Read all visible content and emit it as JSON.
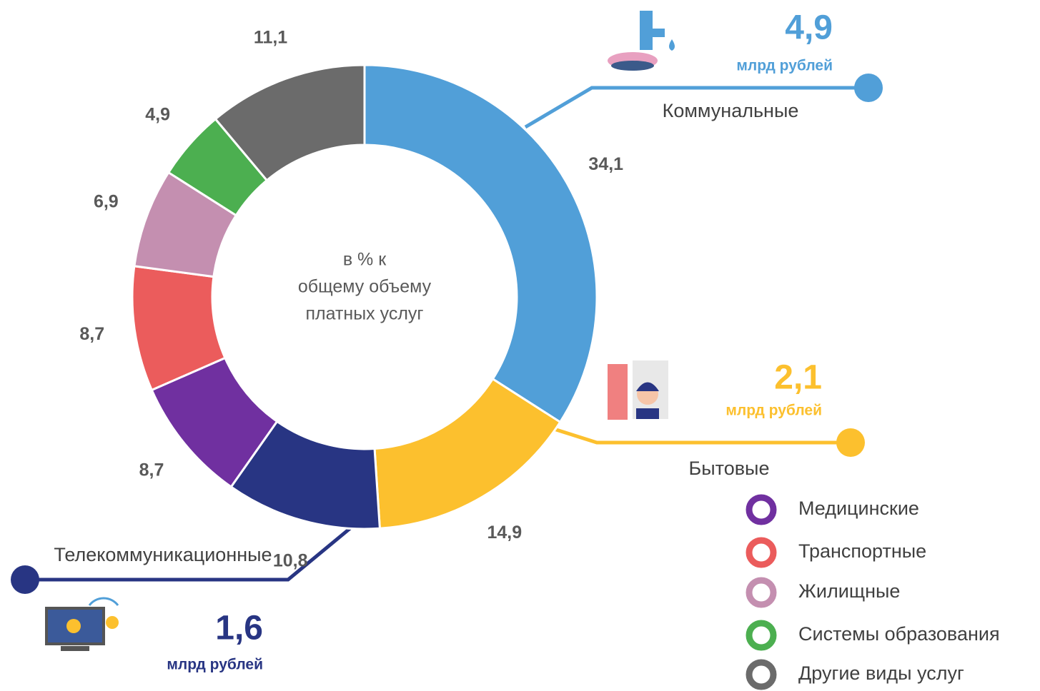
{
  "chart_data": {
    "type": "donut",
    "categories": [
      "Коммунальные",
      "Бытовые",
      "Телекоммуникационные",
      "Медицинские",
      "Транспортные",
      "Жилищные",
      "Системы образования",
      "Другие виды услуг"
    ],
    "values": [
      34.1,
      14.9,
      10.8,
      8.7,
      8.7,
      6.9,
      4.9,
      11.1
    ],
    "value_labels": [
      "34,1",
      "14,9",
      "10,8",
      "8,7",
      "8,7",
      "6,9",
      "4,9",
      "11,1"
    ],
    "colors": [
      "#519fd8",
      "#fcc02e",
      "#283583",
      "#7030a0",
      "#eb5c5c",
      "#c48fb0",
      "#4caf50",
      "#6b6b6b"
    ],
    "center_text": [
      "в % к",
      "общему объему",
      "платных услуг"
    ],
    "callouts": [
      {
        "value_label": "4,9",
        "unit": "млрд рублей"
      },
      {
        "value_label": "2,1",
        "unit": "млрд рублей"
      },
      {
        "value_label": "1,6",
        "unit": "млрд рублей"
      }
    ]
  }
}
